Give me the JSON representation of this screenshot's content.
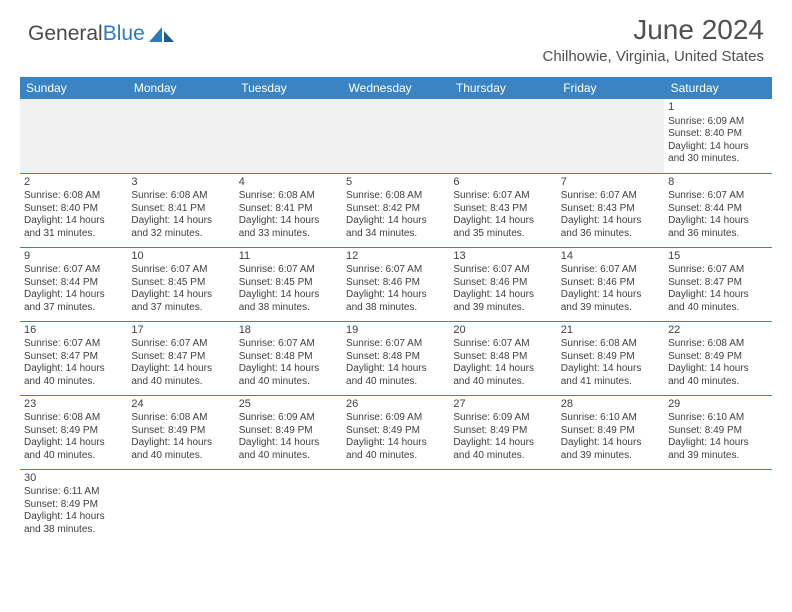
{
  "brand": {
    "name1": "General",
    "name2": "Blue"
  },
  "title": "June 2024",
  "location": "Chilhowie, Virginia, United States",
  "colors": {
    "header_bg": "#3a84c4",
    "header_text": "#ffffff",
    "cell_text": "#404040",
    "border": "#3a84c4",
    "empty_bg": "#f0f0f0",
    "logo_gray": "#4a4a4a",
    "logo_blue": "#2b7bbf"
  },
  "typography": {
    "title_fontsize": 28,
    "location_fontsize": 15,
    "header_fontsize": 12,
    "daynum_fontsize": 11,
    "cell_fontsize": 10
  },
  "weekdays": [
    "Sunday",
    "Monday",
    "Tuesday",
    "Wednesday",
    "Thursday",
    "Friday",
    "Saturday"
  ],
  "weeks": [
    [
      null,
      null,
      null,
      null,
      null,
      null,
      {
        "n": "1",
        "sr": "6:09 AM",
        "ss": "8:40 PM",
        "dl": "14 hours and 30 minutes."
      }
    ],
    [
      {
        "n": "2",
        "sr": "6:08 AM",
        "ss": "8:40 PM",
        "dl": "14 hours and 31 minutes."
      },
      {
        "n": "3",
        "sr": "6:08 AM",
        "ss": "8:41 PM",
        "dl": "14 hours and 32 minutes."
      },
      {
        "n": "4",
        "sr": "6:08 AM",
        "ss": "8:41 PM",
        "dl": "14 hours and 33 minutes."
      },
      {
        "n": "5",
        "sr": "6:08 AM",
        "ss": "8:42 PM",
        "dl": "14 hours and 34 minutes."
      },
      {
        "n": "6",
        "sr": "6:07 AM",
        "ss": "8:43 PM",
        "dl": "14 hours and 35 minutes."
      },
      {
        "n": "7",
        "sr": "6:07 AM",
        "ss": "8:43 PM",
        "dl": "14 hours and 36 minutes."
      },
      {
        "n": "8",
        "sr": "6:07 AM",
        "ss": "8:44 PM",
        "dl": "14 hours and 36 minutes."
      }
    ],
    [
      {
        "n": "9",
        "sr": "6:07 AM",
        "ss": "8:44 PM",
        "dl": "14 hours and 37 minutes."
      },
      {
        "n": "10",
        "sr": "6:07 AM",
        "ss": "8:45 PM",
        "dl": "14 hours and 37 minutes."
      },
      {
        "n": "11",
        "sr": "6:07 AM",
        "ss": "8:45 PM",
        "dl": "14 hours and 38 minutes."
      },
      {
        "n": "12",
        "sr": "6:07 AM",
        "ss": "8:46 PM",
        "dl": "14 hours and 38 minutes."
      },
      {
        "n": "13",
        "sr": "6:07 AM",
        "ss": "8:46 PM",
        "dl": "14 hours and 39 minutes."
      },
      {
        "n": "14",
        "sr": "6:07 AM",
        "ss": "8:46 PM",
        "dl": "14 hours and 39 minutes."
      },
      {
        "n": "15",
        "sr": "6:07 AM",
        "ss": "8:47 PM",
        "dl": "14 hours and 40 minutes."
      }
    ],
    [
      {
        "n": "16",
        "sr": "6:07 AM",
        "ss": "8:47 PM",
        "dl": "14 hours and 40 minutes."
      },
      {
        "n": "17",
        "sr": "6:07 AM",
        "ss": "8:47 PM",
        "dl": "14 hours and 40 minutes."
      },
      {
        "n": "18",
        "sr": "6:07 AM",
        "ss": "8:48 PM",
        "dl": "14 hours and 40 minutes."
      },
      {
        "n": "19",
        "sr": "6:07 AM",
        "ss": "8:48 PM",
        "dl": "14 hours and 40 minutes."
      },
      {
        "n": "20",
        "sr": "6:07 AM",
        "ss": "8:48 PM",
        "dl": "14 hours and 40 minutes."
      },
      {
        "n": "21",
        "sr": "6:08 AM",
        "ss": "8:49 PM",
        "dl": "14 hours and 41 minutes."
      },
      {
        "n": "22",
        "sr": "6:08 AM",
        "ss": "8:49 PM",
        "dl": "14 hours and 40 minutes."
      }
    ],
    [
      {
        "n": "23",
        "sr": "6:08 AM",
        "ss": "8:49 PM",
        "dl": "14 hours and 40 minutes."
      },
      {
        "n": "24",
        "sr": "6:08 AM",
        "ss": "8:49 PM",
        "dl": "14 hours and 40 minutes."
      },
      {
        "n": "25",
        "sr": "6:09 AM",
        "ss": "8:49 PM",
        "dl": "14 hours and 40 minutes."
      },
      {
        "n": "26",
        "sr": "6:09 AM",
        "ss": "8:49 PM",
        "dl": "14 hours and 40 minutes."
      },
      {
        "n": "27",
        "sr": "6:09 AM",
        "ss": "8:49 PM",
        "dl": "14 hours and 40 minutes."
      },
      {
        "n": "28",
        "sr": "6:10 AM",
        "ss": "8:49 PM",
        "dl": "14 hours and 39 minutes."
      },
      {
        "n": "29",
        "sr": "6:10 AM",
        "ss": "8:49 PM",
        "dl": "14 hours and 39 minutes."
      }
    ],
    [
      {
        "n": "30",
        "sr": "6:11 AM",
        "ss": "8:49 PM",
        "dl": "14 hours and 38 minutes."
      },
      null,
      null,
      null,
      null,
      null,
      null
    ]
  ],
  "labels": {
    "sunrise": "Sunrise: ",
    "sunset": "Sunset: ",
    "daylight": "Daylight: "
  }
}
